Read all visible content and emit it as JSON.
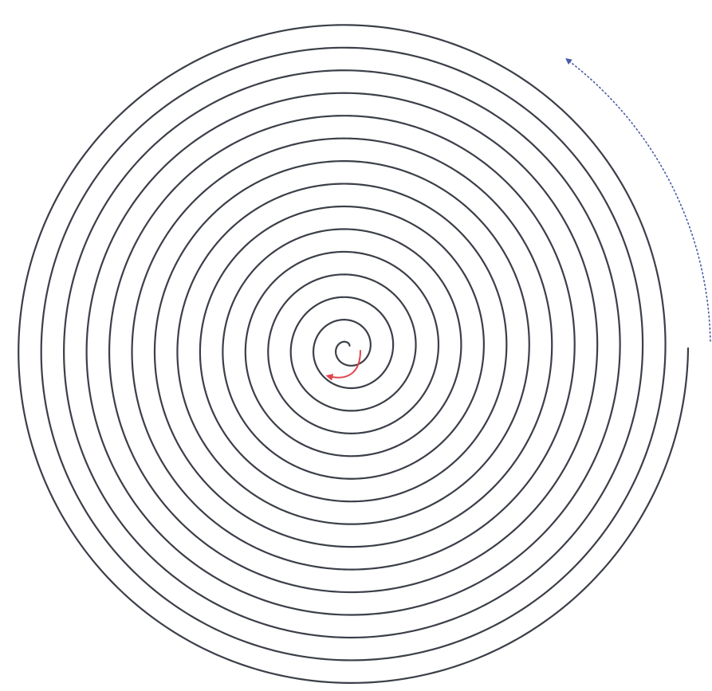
{
  "figure": {
    "type": "archimedean-spiral",
    "turns": 15,
    "colors": {
      "background": "#ffffff",
      "spiral": "#3b3f48",
      "inner_arrow": "#e0454f",
      "outer_arrow": "#4a5aa8"
    },
    "elements": {
      "spiral": {
        "name": "spiral-line"
      },
      "inner_arrow": {
        "name": "inner-direction-arrow",
        "style": "solid"
      },
      "outer_arrow": {
        "name": "outer-direction-arrow",
        "style": "dotted"
      }
    }
  }
}
